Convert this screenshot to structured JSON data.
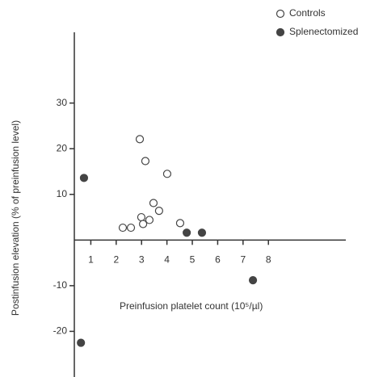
{
  "chart_data": {
    "type": "scatter",
    "x_label": "Preinfusion platelet count (10⁵/µl)",
    "y_label": "Postinfusion elevation (% of preinfusion level)",
    "xlim": [
      0.35,
      11.05
    ],
    "ylim": [
      -30,
      45.5
    ],
    "xticks": [
      1,
      2,
      3,
      4,
      5,
      6,
      7,
      8
    ],
    "yticks": [
      -20,
      -10,
      10,
      20,
      30
    ],
    "series": [
      {
        "name": "Controls",
        "color": "#444444",
        "filled": false,
        "x": [
          2.93,
          3.15,
          4.01,
          3.47,
          3.69,
          2.99,
          3.06,
          3.31,
          2.26,
          2.58,
          4.52
        ],
        "values": [
          22.1,
          17.3,
          14.5,
          8.1,
          6.4,
          5.0,
          3.5,
          4.4,
          2.7,
          2.7,
          3.7
        ]
      },
      {
        "name": "Splenectomized",
        "color": "#444444",
        "filled": true,
        "x": [
          0.73,
          4.78,
          5.38,
          7.39,
          0.61
        ],
        "values": [
          13.6,
          1.6,
          1.6,
          -8.8,
          -22.5
        ]
      }
    ]
  }
}
